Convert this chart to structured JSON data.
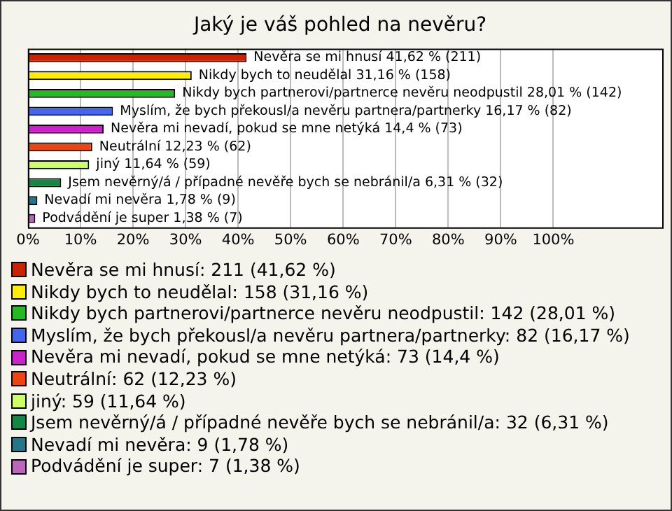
{
  "chart_data": {
    "type": "bar",
    "orientation": "horizontal",
    "stacked": true,
    "title": "Jaký je váš pohled na nevěru?",
    "categories": [
      null,
      null,
      null,
      null,
      null,
      null,
      null,
      null,
      null,
      null
    ],
    "series": [
      {
        "name": "Nevěra se mi hnusí: 211 (41,62 %)",
        "color": "#cc2200",
        "values": [
          41.62,
          null,
          null,
          null,
          null,
          null,
          null,
          null,
          null,
          null
        ],
        "value_labels": [
          "Nevěra se mi hnusí 41,62 % (211)",
          null,
          null,
          null,
          null,
          null,
          null,
          null,
          null,
          null
        ]
      },
      {
        "name": "Nikdy bych to neudělal: 158 (31,16 %)",
        "color": "#ffee00",
        "values": [
          null,
          31.16,
          null,
          null,
          null,
          null,
          null,
          null,
          null,
          null
        ],
        "value_labels": [
          null,
          "Nikdy bych to neudělal 31,16 % (158)",
          null,
          null,
          null,
          null,
          null,
          null,
          null,
          null
        ]
      },
      {
        "name": "Nikdy bych partnerovi/partnerce nevěru neodpustil: 142 (28,01 %)",
        "color": "#22bb22",
        "values": [
          null,
          null,
          28.01,
          null,
          null,
          null,
          null,
          null,
          null,
          null
        ],
        "value_labels": [
          null,
          null,
          "Nikdy bych partnerovi/partnerce nevěru neodpustil 28,01 % (142)",
          null,
          null,
          null,
          null,
          null,
          null,
          null
        ]
      },
      {
        "name": "Myslím, že bych překousl/a nevěru partnera/partnerky: 82 (16,17 %)",
        "color": "#4466ee",
        "values": [
          null,
          null,
          null,
          16.17,
          null,
          null,
          null,
          null,
          null,
          null
        ],
        "value_labels": [
          null,
          null,
          null,
          "Myslím, že bych překousl/a nevěru partnera/partnerky 16,17 % (82)",
          null,
          null,
          null,
          null,
          null,
          null
        ]
      },
      {
        "name": "Nevěra mi nevadí, pokud se mne netýká: 73 (14,4 %)",
        "color": "#cc22cc",
        "values": [
          null,
          null,
          null,
          null,
          14.4,
          null,
          null,
          null,
          null,
          null
        ],
        "value_labels": [
          null,
          null,
          null,
          null,
          "Nevěra mi nevadí, pokud se mne netýká 14,4 % (73)",
          null,
          null,
          null,
          null,
          null
        ]
      },
      {
        "name": "Neutrální: 62 (12,23 %)",
        "color": "#ee4411",
        "values": [
          null,
          null,
          null,
          null,
          null,
          12.23,
          null,
          null,
          null,
          null
        ],
        "value_labels": [
          null,
          null,
          null,
          null,
          null,
          "Neutrální 12,23 % (62)",
          null,
          null,
          null,
          null
        ]
      },
      {
        "name": "jiný: 59 (11,64 %)",
        "color": "#ccff66",
        "values": [
          null,
          null,
          null,
          null,
          null,
          null,
          11.64,
          null,
          null,
          null
        ],
        "value_labels": [
          null,
          null,
          null,
          null,
          null,
          null,
          "jiný 11,64 % (59)",
          null,
          null,
          null
        ]
      },
      {
        "name": "Jsem nevěrný/á / případné nevěře bych se nebránil/a: 32 (6,31 %)",
        "color": "#118844",
        "values": [
          null,
          null,
          null,
          null,
          null,
          null,
          null,
          6.31,
          null,
          null
        ],
        "value_labels": [
          null,
          null,
          null,
          null,
          null,
          null,
          null,
          "Jsem nevěrný/á / případné nevěře bych se nebránil/a 6,31 % (32)",
          null,
          null
        ]
      },
      {
        "name": "Nevadí mi nevěra: 9 (1,78 %)",
        "color": "#227788",
        "values": [
          null,
          null,
          null,
          null,
          null,
          null,
          null,
          null,
          1.78,
          null
        ],
        "value_labels": [
          null,
          null,
          null,
          null,
          null,
          null,
          null,
          null,
          "Nevadí mi nevěra 1,78 % (9)",
          null
        ]
      },
      {
        "name": "Podvádění je super: 7 (1,38 %)",
        "color": "#bb66bb",
        "values": [
          null,
          null,
          null,
          null,
          null,
          null,
          null,
          null,
          null,
          1.38
        ],
        "value_labels": [
          null,
          null,
          null,
          null,
          null,
          null,
          null,
          null,
          null,
          "Podvádění je super 1,38 % (7)"
        ]
      }
    ],
    "xlim": [
      0,
      121
    ],
    "xticks": [
      {
        "value": 0,
        "label": "0%"
      },
      {
        "value": 10,
        "label": "10%"
      },
      {
        "value": 20,
        "label": "20%"
      },
      {
        "value": 30,
        "label": "30%"
      },
      {
        "value": 40,
        "label": "40%"
      },
      {
        "value": 50,
        "label": "50%"
      },
      {
        "value": 60,
        "label": "60%"
      },
      {
        "value": 70,
        "label": "70%"
      },
      {
        "value": 80,
        "label": "80%"
      },
      {
        "value": 90,
        "label": "90%"
      },
      {
        "value": 100,
        "label": "100%"
      }
    ],
    "grid": "x",
    "legend": "bottom"
  }
}
